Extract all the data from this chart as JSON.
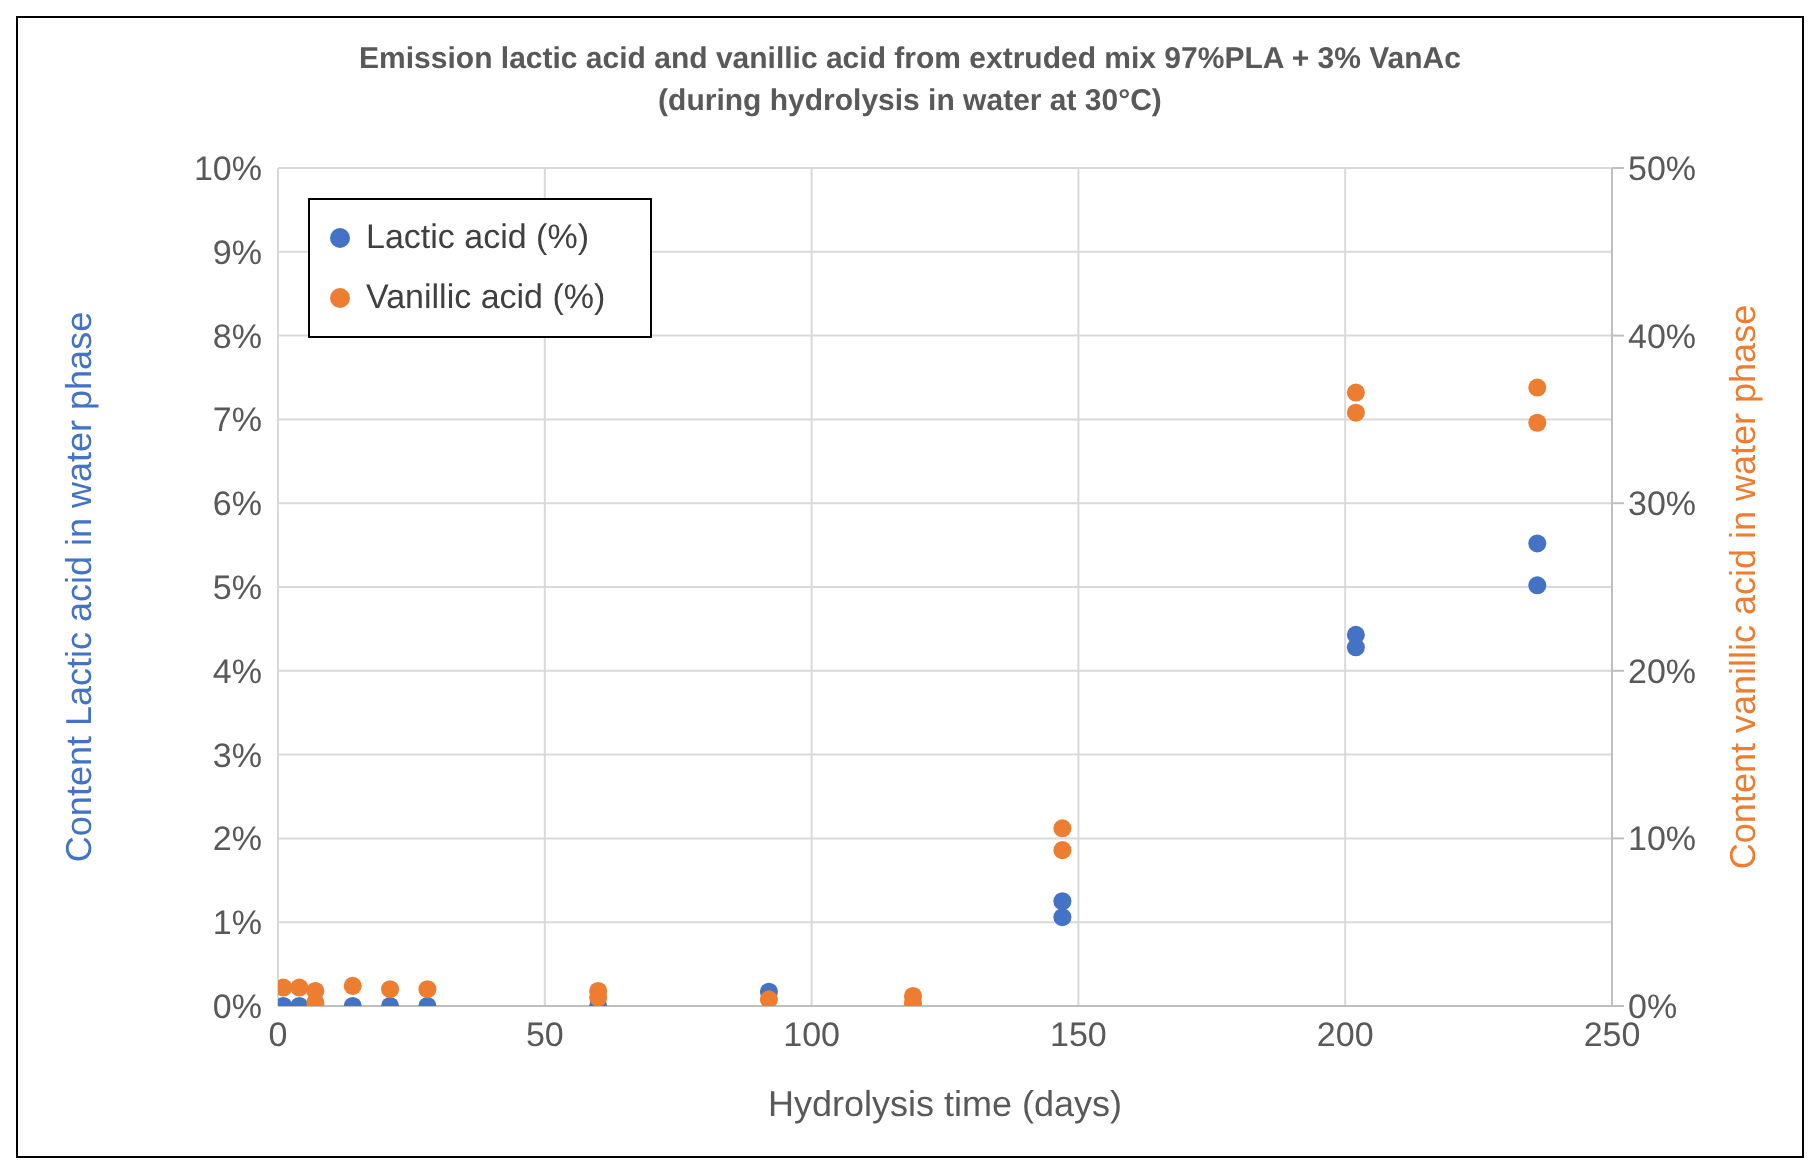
{
  "chart_data": {
    "type": "scatter",
    "title": "Emission lactic acid and vanillic acid from extruded mix 97%PLA + 3% VanAc\n(during hydrolysis in water at 30°C)",
    "xlabel": "Hydrolysis time (days)",
    "ylabel": "Content Lactic acid in water phase",
    "y2label": "Content vanillic acid in water phase",
    "xlim": [
      0,
      250
    ],
    "xticks": [
      0,
      50,
      100,
      150,
      200,
      250
    ],
    "ylim": [
      0,
      10
    ],
    "yticks": [
      {
        "value": 0,
        "label": "0%"
      },
      {
        "value": 1,
        "label": "1%"
      },
      {
        "value": 2,
        "label": "2%"
      },
      {
        "value": 3,
        "label": "3%"
      },
      {
        "value": 4,
        "label": "4%"
      },
      {
        "value": 5,
        "label": "5%"
      },
      {
        "value": 6,
        "label": "6%"
      },
      {
        "value": 7,
        "label": "7%"
      },
      {
        "value": 8,
        "label": "8%"
      },
      {
        "value": 9,
        "label": "9%"
      },
      {
        "value": 10,
        "label": "10%"
      }
    ],
    "y2lim": [
      0,
      50
    ],
    "y2ticks": [
      {
        "value": 0,
        "label": "0%"
      },
      {
        "value": 10,
        "label": "10%"
      },
      {
        "value": 20,
        "label": "20%"
      },
      {
        "value": 30,
        "label": "30%"
      },
      {
        "value": 40,
        "label": "40%"
      },
      {
        "value": 50,
        "label": "50%"
      }
    ],
    "grid": true,
    "legend": "top left",
    "marker": "circle",
    "series": [
      {
        "name": "Lactic acid (%)",
        "color": "#4472c4",
        "x": [
          1,
          4,
          14,
          21,
          28,
          60,
          92,
          147,
          147,
          202,
          202,
          236,
          236
        ],
        "values": [
          0,
          0,
          0,
          0,
          0,
          0,
          0.17,
          1.25,
          1.06,
          4.43,
          4.28,
          5.52,
          5.02
        ]
      },
      {
        "name": "Vanillic acid (%)",
        "color": "#ed7d31",
        "axis": "y2",
        "x": [
          1,
          4,
          7,
          7,
          14,
          21,
          28,
          60,
          60,
          92,
          119,
          119,
          147,
          147,
          202,
          202,
          236,
          236
        ],
        "values": [
          1.1,
          1.1,
          0.9,
          0.2,
          1.2,
          1,
          1,
          0.9,
          0.5,
          0.4,
          0.6,
          0.2,
          10.6,
          9.3,
          36.6,
          35.4,
          36.9,
          34.8
        ]
      }
    ]
  }
}
